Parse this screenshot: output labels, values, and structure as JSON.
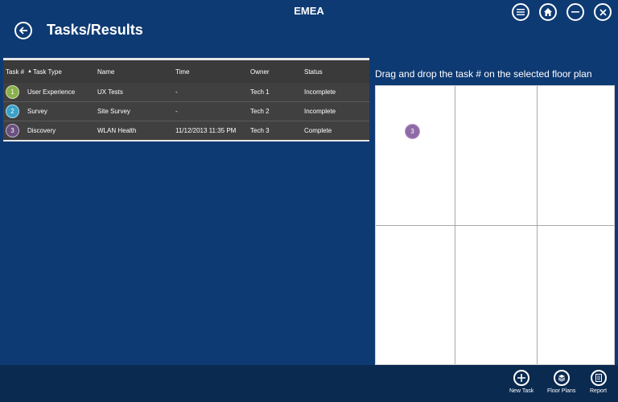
{
  "header": {
    "region": "EMEA",
    "title": "Tasks/Results"
  },
  "table": {
    "columns": {
      "num": "Task #",
      "type": "Task Type",
      "name": "Name",
      "time": "Time",
      "owner": "Owner",
      "status": "Status"
    },
    "rows": [
      {
        "num": "1",
        "type": "User Experience",
        "name": "UX Tests",
        "time": "-",
        "owner": "Tech 1",
        "status": "Incomplete",
        "color": "#8ab04a"
      },
      {
        "num": "2",
        "type": "Survey",
        "name": "Site Survey",
        "time": "-",
        "owner": "Tech 2",
        "status": "Incomplete",
        "color": "#3aa0c8"
      },
      {
        "num": "3",
        "type": "Discovery",
        "name": "WLAN Health",
        "time": "11/12/2013 11:35 PM",
        "owner": "Tech 3",
        "status": "Complete",
        "color": "#6a4f80"
      }
    ]
  },
  "floorplan": {
    "title": "Drag and drop the task # on the selected floor plan",
    "placed_task": "3"
  },
  "bottombar": {
    "new_task": "New Task",
    "floor_plans": "Floor Plans",
    "report": "Report"
  }
}
